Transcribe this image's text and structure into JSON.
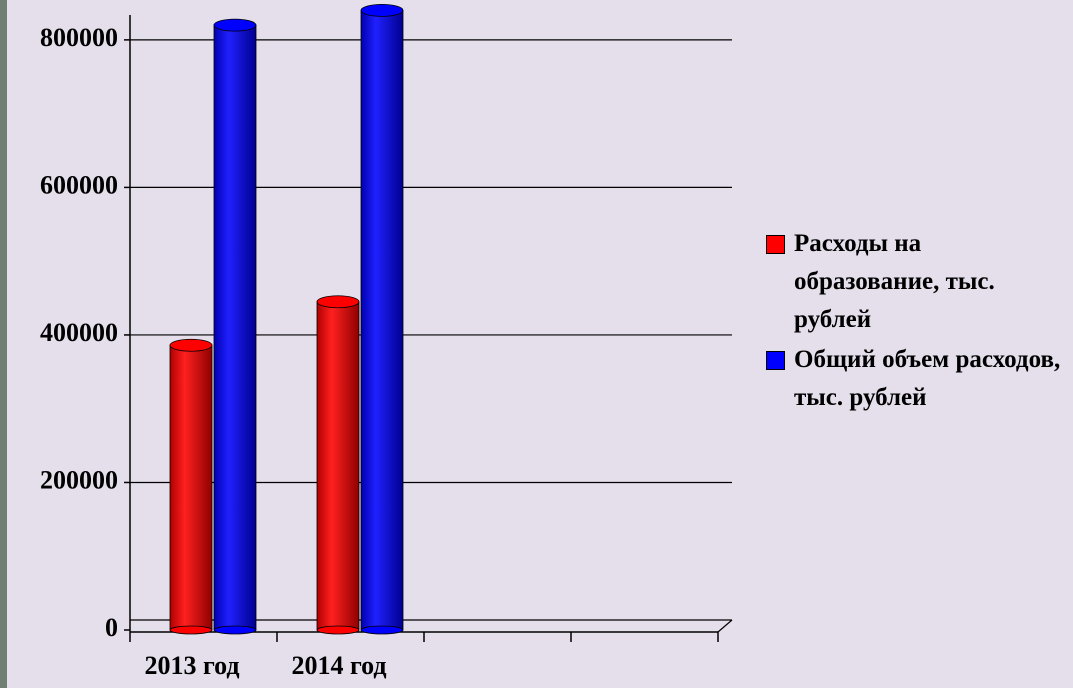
{
  "chart_data": {
    "type": "bar",
    "categories": [
      "2013 год",
      "2014 год",
      null,
      null
    ],
    "series": [
      {
        "name": "Расходы на образование, тыс. рублей",
        "color": "#ff0000",
        "values": [
          386000,
          445000,
          null,
          null
        ]
      },
      {
        "name": "Общий объем расходов, тыс. рублей",
        "color": "#0000ff",
        "values": [
          820000,
          840000,
          null,
          null
        ]
      }
    ],
    "ylim": [
      0,
      850000
    ],
    "yticks": [
      0,
      200000,
      400000,
      600000,
      800000
    ],
    "grid": true,
    "legend": "right"
  }
}
